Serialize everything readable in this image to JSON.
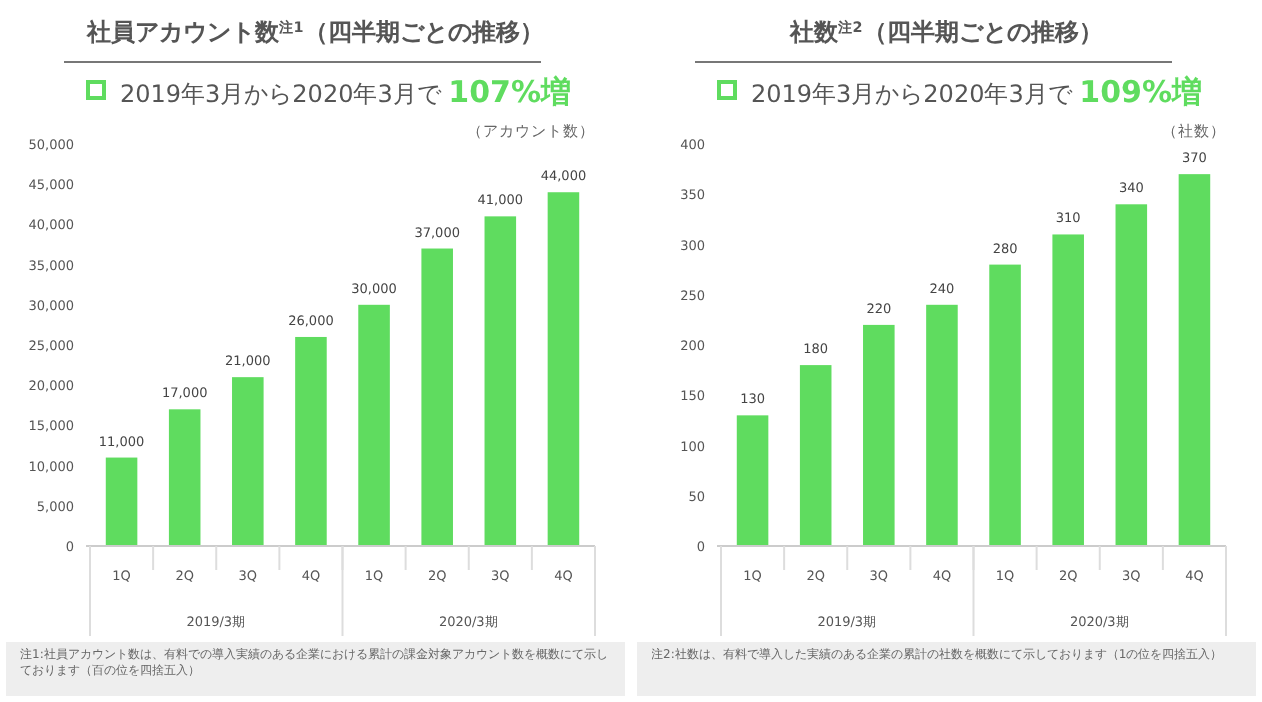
{
  "chart_data": [
    {
      "type": "bar",
      "title": "社員アカウント数$^{注1}$（四半期ごとの推移）",
      "subtitle": "2019年3月から2020年3月で 107%増",
      "ylabel": "（アカウント数）",
      "categories": [
        "1Q",
        "2Q",
        "3Q",
        "4Q",
        "1Q",
        "2Q",
        "3Q",
        "4Q"
      ],
      "values": [
        11000,
        17000,
        21000,
        26000,
        30000,
        37000,
        41000,
        44000
      ],
      "color": "#5fdc5f",
      "ylim": [
        0,
        50000
      ],
      "yticks": [
        {
          "value": 0,
          "label": "0"
        },
        {
          "value": 5000,
          "label": "5,000"
        },
        {
          "value": 10000,
          "label": "10,000"
        },
        {
          "value": 15000,
          "label": "15,000"
        },
        {
          "value": 20000,
          "label": "20,000"
        },
        {
          "value": 25000,
          "label": "25,000"
        },
        {
          "value": 30000,
          "label": "30,000"
        },
        {
          "value": 35000,
          "label": "35,000"
        },
        {
          "value": 40000,
          "label": "40,000"
        },
        {
          "value": 45000,
          "label": "45,000"
        },
        {
          "value": 50000,
          "label": "50,000"
        }
      ],
      "value_labels": [
        "11,000",
        "17,000",
        "21,000",
        "26,000",
        "30,000",
        "37,000",
        "41,000",
        "44,000"
      ],
      "annotations": [
        "2019/3期",
        "2020/3期",
        "注1:社員アカウント数は、有料での導入実績のある企業における累計の課金対象アカウント数を概数にて示しております（百の位を四捨五入）"
      ]
    },
    {
      "type": "bar",
      "title": "社数$^{注2}$（四半期ごとの推移）",
      "subtitle": "2019年3月から2020年3月で 109%増",
      "ylabel": "（社数）",
      "categories": [
        "1Q",
        "2Q",
        "3Q",
        "4Q",
        "1Q",
        "2Q",
        "3Q",
        "4Q"
      ],
      "values": [
        130,
        180,
        220,
        240,
        280,
        310,
        340,
        370
      ],
      "color": "#5fdc5f",
      "ylim": [
        0,
        400
      ],
      "yticks": [
        0,
        50,
        100,
        150,
        200,
        250,
        300,
        350,
        400
      ],
      "data_labels": true,
      "annotations": [
        "2019/3期",
        "2020/3期",
        "注2:社数は、有料で導入した実績のある企業の累計の社数を概数にて示しております（1の位を四捨五入）"
      ]
    }
  ]
}
